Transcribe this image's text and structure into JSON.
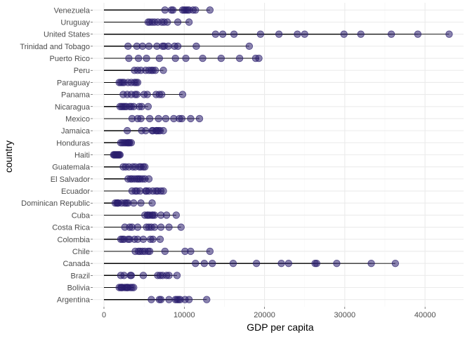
{
  "chart_data": {
    "type": "scatter",
    "xlabel": "GDP per capita",
    "ylabel": "country",
    "xlim": [
      -1400,
      44800
    ],
    "x_ticks": [
      0,
      10000,
      20000,
      30000,
      40000
    ],
    "x_tick_labels": [
      "0",
      "10000",
      "20000",
      "30000",
      "40000"
    ],
    "grid": true,
    "countries": [
      "Argentina",
      "Bolivia",
      "Brazil",
      "Canada",
      "Chile",
      "Colombia",
      "Costa Rica",
      "Cuba",
      "Dominican Republic",
      "Ecuador",
      "El Salvador",
      "Guatemala",
      "Haiti",
      "Honduras",
      "Jamaica",
      "Mexico",
      "Nicaragua",
      "Panama",
      "Paraguay",
      "Peru",
      "Puerto Rico",
      "Trinidad and Tobago",
      "United States",
      "Uruguay",
      "Venezuela"
    ],
    "series": [
      {
        "country": "Argentina",
        "values": [
          5900,
          6900,
          7100,
          8100,
          8900,
          9100,
          9300,
          9500,
          10100,
          10600,
          12800
        ]
      },
      {
        "country": "Bolivia",
        "values": [
          1900,
          2100,
          2200,
          2300,
          2600,
          2800,
          2900,
          3000,
          3300,
          3500,
          3700
        ]
      },
      {
        "country": "Brazil",
        "values": [
          2100,
          2500,
          3300,
          3400,
          4900,
          6700,
          7000,
          7300,
          7800,
          8100,
          9100
        ]
      },
      {
        "country": "Canada",
        "values": [
          11400,
          12500,
          13500,
          16100,
          19000,
          22100,
          23000,
          26300,
          26500,
          29000,
          33300,
          36300
        ]
      },
      {
        "country": "Chile",
        "values": [
          3900,
          4300,
          4500,
          4800,
          5100,
          5500,
          5700,
          7600,
          10100,
          10800,
          13200
        ]
      },
      {
        "country": "Colombia",
        "values": [
          2100,
          2300,
          2500,
          3000,
          3200,
          3800,
          4200,
          4900,
          5800,
          6100,
          7000
        ]
      },
      {
        "country": "Costa Rica",
        "values": [
          2600,
          3200,
          3500,
          4200,
          5300,
          5600,
          5900,
          6300,
          7100,
          8100,
          9600
        ]
      },
      {
        "country": "Cuba",
        "values": [
          5100,
          5400,
          5500,
          5700,
          6000,
          6100,
          6300,
          7100,
          7800,
          9000
        ]
      },
      {
        "country": "Dominican Republic",
        "values": [
          1400,
          1600,
          1700,
          1800,
          2200,
          2600,
          2800,
          3000,
          3700,
          4600,
          6000
        ]
      },
      {
        "country": "Ecuador",
        "values": [
          3500,
          3900,
          4100,
          4500,
          5200,
          5300,
          5600,
          6100,
          6500,
          6700,
          7100,
          7400
        ]
      },
      {
        "country": "El Salvador",
        "values": [
          3000,
          3300,
          3500,
          3800,
          4100,
          4300,
          4500,
          4800,
          5100,
          5600
        ]
      },
      {
        "country": "Guatemala",
        "values": [
          2400,
          2700,
          3100,
          3600,
          3900,
          4400,
          4600,
          4900,
          5100
        ]
      },
      {
        "country": "Haiti",
        "values": [
          1200,
          1300,
          1400,
          1500,
          1600,
          1700,
          1800,
          1900,
          2000
        ]
      },
      {
        "country": "Honduras",
        "values": [
          2100,
          2300,
          2500,
          2700,
          2900,
          3000,
          3100,
          3200,
          3400
        ]
      },
      {
        "country": "Jamaica",
        "values": [
          2900,
          4700,
          5200,
          6000,
          6100,
          6500,
          6600,
          6800,
          7000,
          7400
        ]
      },
      {
        "country": "Mexico",
        "values": [
          3500,
          4200,
          4600,
          5700,
          6800,
          7700,
          8700,
          9400,
          9700,
          10800,
          11900
        ]
      },
      {
        "country": "Nicaragua",
        "values": [
          2000,
          2200,
          2400,
          2600,
          2800,
          3200,
          3400,
          3700,
          4400,
          4700,
          5500
        ]
      },
      {
        "country": "Panama",
        "values": [
          2400,
          2900,
          3400,
          3900,
          4100,
          5000,
          5400,
          6500,
          6900,
          7200,
          9800
        ]
      },
      {
        "country": "Paraguay",
        "values": [
          1900,
          2100,
          2300,
          2500,
          3000,
          3400,
          3800,
          4000,
          4200
        ]
      },
      {
        "country": "Peru",
        "values": [
          3800,
          4200,
          4600,
          5200,
          5600,
          5900,
          6100,
          6400,
          7400
        ]
      },
      {
        "country": "Puerto Rico",
        "values": [
          3100,
          4300,
          5300,
          6900,
          8900,
          10200,
          12300,
          14600,
          16900,
          18900,
          19300
        ]
      },
      {
        "country": "Trinidad and Tobago",
        "values": [
          3000,
          4100,
          4800,
          5600,
          6600,
          7300,
          7500,
          8000,
          8800,
          9200,
          11500,
          18100
        ]
      },
      {
        "country": "United States",
        "values": [
          13900,
          14800,
          16200,
          19500,
          21800,
          24100,
          25000,
          29900,
          32000,
          35800,
          39100,
          43000
        ]
      },
      {
        "country": "Uruguay",
        "values": [
          5500,
          5700,
          6000,
          6300,
          6700,
          7200,
          7500,
          7900,
          9200,
          10600
        ]
      },
      {
        "country": "Venezuela",
        "values": [
          7600,
          8400,
          8600,
          9800,
          10000,
          10200,
          10400,
          10600,
          11100,
          11400,
          13200
        ]
      }
    ],
    "style": {
      "point_color": "#2a1d6e",
      "point_opacity": 0.55,
      "segment_color": "#000000",
      "grid_major": "#ebebeb",
      "grid_minor": "#f5f5f5"
    }
  }
}
